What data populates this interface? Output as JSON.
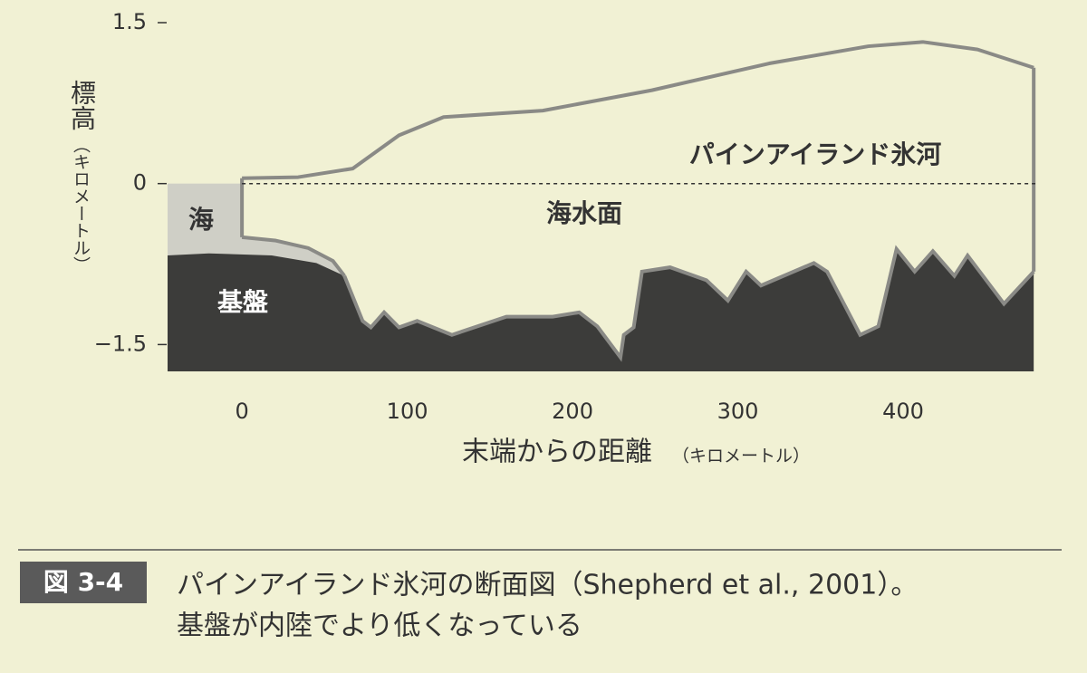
{
  "chart_data": {
    "type": "profile",
    "y_label": "標高",
    "y_label_unit": "（キロメートル）",
    "x_label": "末端からの距離",
    "x_label_unit": "（キロメートル）",
    "xlim": [
      -45,
      480
    ],
    "ylim": [
      -1.75,
      1.5
    ],
    "xticks": [
      0,
      100,
      200,
      300,
      400
    ],
    "yticks": [
      1.5,
      0,
      {
        "value": -1.5,
        "label": "−1.5"
      }
    ],
    "sea_level": 0,
    "annotations": {
      "glacier": "パインアイランド氷河",
      "sea_level": "海水面",
      "sea": "海",
      "bedrock": "基盤"
    },
    "series": [
      {
        "name": "ice_surface",
        "color": "#8a8a86",
        "x": [
          0,
          34,
          67,
          95,
          122,
          182,
          248,
          319,
          379,
          412,
          445,
          479
        ],
        "values": [
          0.05,
          0.06,
          0.14,
          0.45,
          0.62,
          0.68,
          0.87,
          1.12,
          1.28,
          1.32,
          1.25,
          1.08
        ]
      },
      {
        "name": "ice_shelf_base",
        "color": "#8a8a86",
        "x": [
          0,
          20,
          40,
          55,
          62
        ],
        "values": [
          -0.5,
          -0.53,
          -0.6,
          -0.72,
          -0.86
        ]
      },
      {
        "name": "bedrock",
        "color": "#3c3c3a",
        "x": [
          -45,
          -20,
          18,
          45,
          62,
          73,
          78,
          86,
          95,
          106,
          127,
          160,
          188,
          204,
          215,
          229,
          231,
          237,
          242,
          259,
          281,
          294,
          305,
          314,
          346,
          354,
          374,
          385,
          396,
          407,
          418,
          431,
          439,
          461,
          479
        ],
        "values": [
          -0.67,
          -0.65,
          -0.67,
          -0.74,
          -0.86,
          -1.28,
          -1.34,
          -1.2,
          -1.34,
          -1.28,
          -1.41,
          -1.24,
          -1.24,
          -1.2,
          -1.33,
          -1.62,
          -1.41,
          -1.34,
          -0.82,
          -0.78,
          -0.9,
          -1.09,
          -0.82,
          -0.95,
          -0.74,
          -0.82,
          -1.41,
          -1.33,
          -0.61,
          -0.82,
          -0.63,
          -0.86,
          -0.67,
          -1.12,
          -0.82
        ]
      }
    ]
  },
  "caption": {
    "label": "図 3-4",
    "lines": [
      "パインアイランド氷河の断面図（Shepherd et al., 2001）。",
      "基盤が内陸でより低くなっている"
    ]
  }
}
